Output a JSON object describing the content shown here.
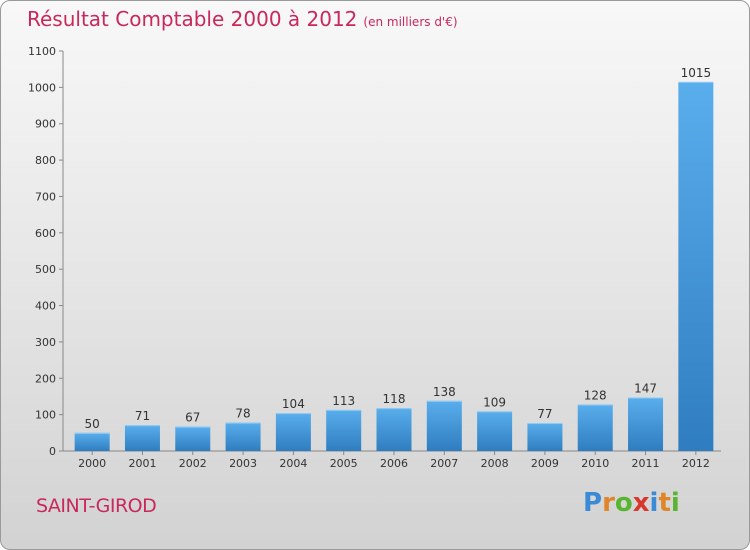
{
  "header": {
    "title": "Résultat Comptable 2000 à 2012",
    "subtitle": "(en milliers d'€)"
  },
  "footer": {
    "commune": "SAINT-GIROD",
    "logo_letters": [
      "P",
      "r",
      "o",
      "x",
      "i",
      "t",
      "i"
    ],
    "logo_colors": [
      "#3a8ad6",
      "#e0862a",
      "#58b530",
      "#d8382c",
      "#3a8ad6",
      "#e0862a",
      "#58b530"
    ]
  },
  "colors": {
    "bar_top": "#5aaeec",
    "bar_bottom": "#2f7dc0",
    "title": "#c8285a"
  },
  "chart_data": {
    "type": "bar",
    "title": "Résultat Comptable 2000 à 2012",
    "xlabel": "",
    "ylabel": "",
    "categories": [
      "2000",
      "2001",
      "2002",
      "2003",
      "2004",
      "2005",
      "2006",
      "2007",
      "2008",
      "2009",
      "2010",
      "2011",
      "2012"
    ],
    "values": [
      50,
      71,
      67,
      78,
      104,
      113,
      118,
      138,
      109,
      77,
      128,
      147,
      1015
    ],
    "ylim": [
      0,
      1100
    ],
    "yticks": [
      0,
      100,
      200,
      300,
      400,
      500,
      600,
      700,
      800,
      900,
      1000,
      1100
    ],
    "grid": false
  }
}
